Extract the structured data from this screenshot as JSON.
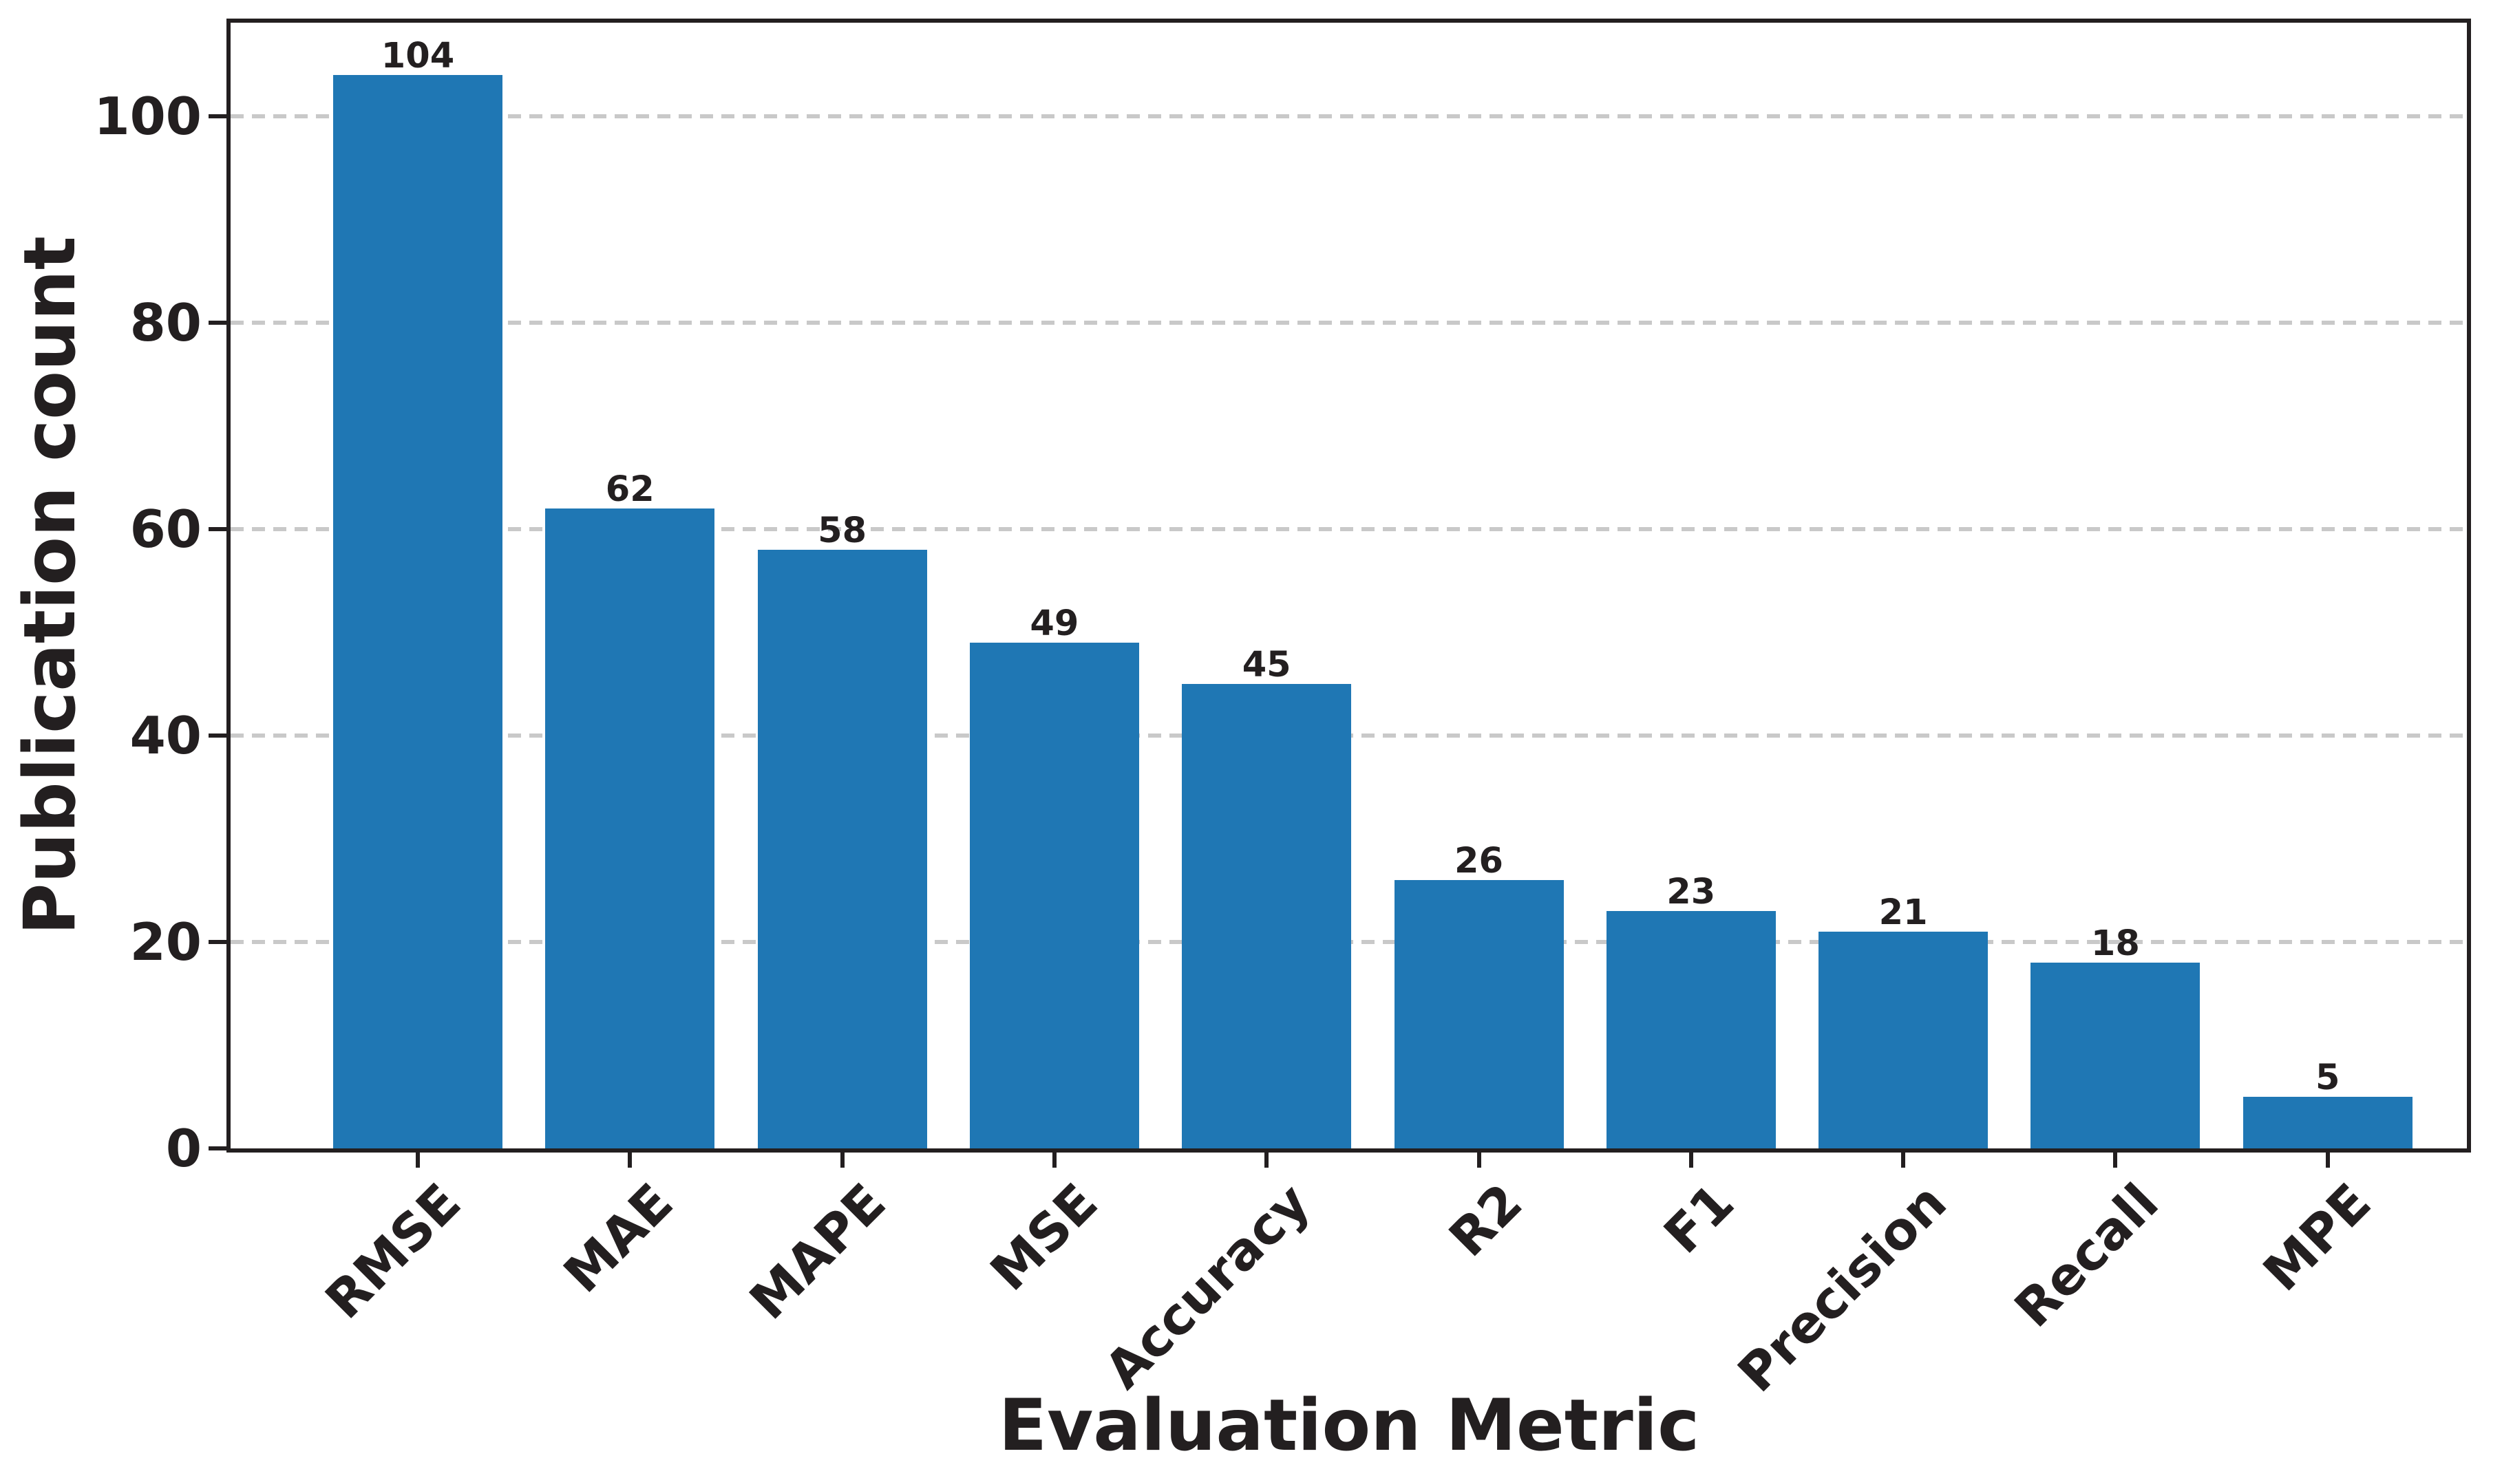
{
  "figure": {
    "background": "#ffffff"
  },
  "chart_data": {
    "type": "bar",
    "title": "",
    "categories": [
      "RMSE",
      "MAE",
      "MAPE",
      "MSE",
      "Accuracy",
      "R2",
      "F1",
      "Precision",
      "Recall",
      "MPE"
    ],
    "values": [
      104,
      62,
      58,
      49,
      45,
      26,
      23,
      21,
      18,
      5
    ],
    "bar_value_labels": [
      "104",
      "62",
      "58",
      "49",
      "45",
      "26",
      "23",
      "21",
      "18",
      "5"
    ],
    "xlabel": "Evaluation Metric",
    "ylabel": "Publication count",
    "ytick_labels": [
      "0",
      "20",
      "40",
      "60",
      "80",
      "100"
    ],
    "yticks": [
      0,
      20,
      40,
      60,
      80,
      100
    ],
    "ylim": [
      0,
      109.1
    ],
    "grid": {
      "axis": "y",
      "style": "dashed",
      "on": true
    },
    "legend": {
      "shown": false
    },
    "colors": {
      "bar": "#1f77b4",
      "axis_and_text": "#231f20",
      "gridline": "#c9c9c9"
    },
    "x_tick_label_rotation_deg": 45
  }
}
